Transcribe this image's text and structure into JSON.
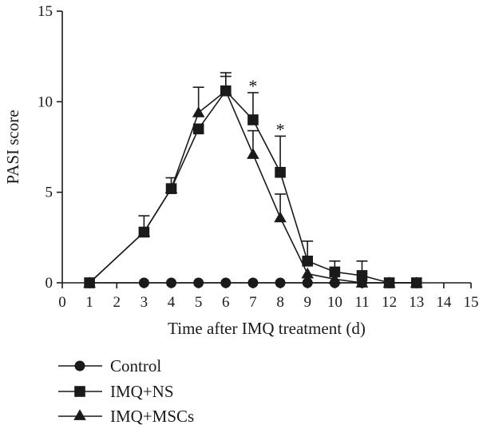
{
  "chart_data": {
    "type": "line",
    "title": "",
    "xlabel": "Time after IMQ treatment (d)",
    "ylabel": "PASI score",
    "xlim": [
      0,
      15
    ],
    "ylim": [
      0,
      15
    ],
    "xticks": [
      "0",
      "1",
      "2",
      "3",
      "4",
      "5",
      "6",
      "7",
      "8",
      "9",
      "10",
      "11",
      "12",
      "13",
      "14",
      "15"
    ],
    "yticks": [
      "0",
      "5",
      "10",
      "15"
    ],
    "grid": false,
    "legend_position": "bottom-left",
    "series": [
      {
        "name": "Control",
        "marker": "circle",
        "color": "#1a1a1a",
        "x": [
          1,
          3,
          4,
          5,
          6,
          7,
          8,
          9,
          10,
          11,
          12,
          13
        ],
        "y": [
          0,
          0,
          0,
          0,
          0,
          0,
          0,
          0,
          0,
          0,
          0,
          0
        ]
      },
      {
        "name": "IMQ+NS",
        "marker": "square",
        "color": "#1a1a1a",
        "x": [
          1,
          3,
          4,
          5,
          6,
          7,
          8,
          9,
          10,
          11,
          12,
          13
        ],
        "y": [
          0,
          2.8,
          5.2,
          8.5,
          10.6,
          9.0,
          6.1,
          1.2,
          0.6,
          0.4,
          0,
          0
        ],
        "error": [
          0,
          0.9,
          0.6,
          0,
          1.0,
          1.5,
          2.0,
          1.1,
          0.6,
          0.8,
          0,
          0
        ]
      },
      {
        "name": "IMQ+MSCs",
        "marker": "triangle",
        "color": "#1a1a1a",
        "x": [
          1,
          3,
          4,
          5,
          6,
          7,
          8,
          9,
          10,
          11,
          12,
          13
        ],
        "y": [
          0,
          2.8,
          5.2,
          9.4,
          10.6,
          7.1,
          3.6,
          0.5,
          0.2,
          0,
          0,
          0
        ],
        "error": [
          0,
          0,
          0,
          1.4,
          0.8,
          1.3,
          1.3,
          0,
          0,
          0,
          0,
          0
        ]
      }
    ],
    "annotations": [
      {
        "text": "*",
        "x": 7,
        "y": 10.9
      },
      {
        "text": "*",
        "x": 8,
        "y": 8.5
      }
    ]
  }
}
